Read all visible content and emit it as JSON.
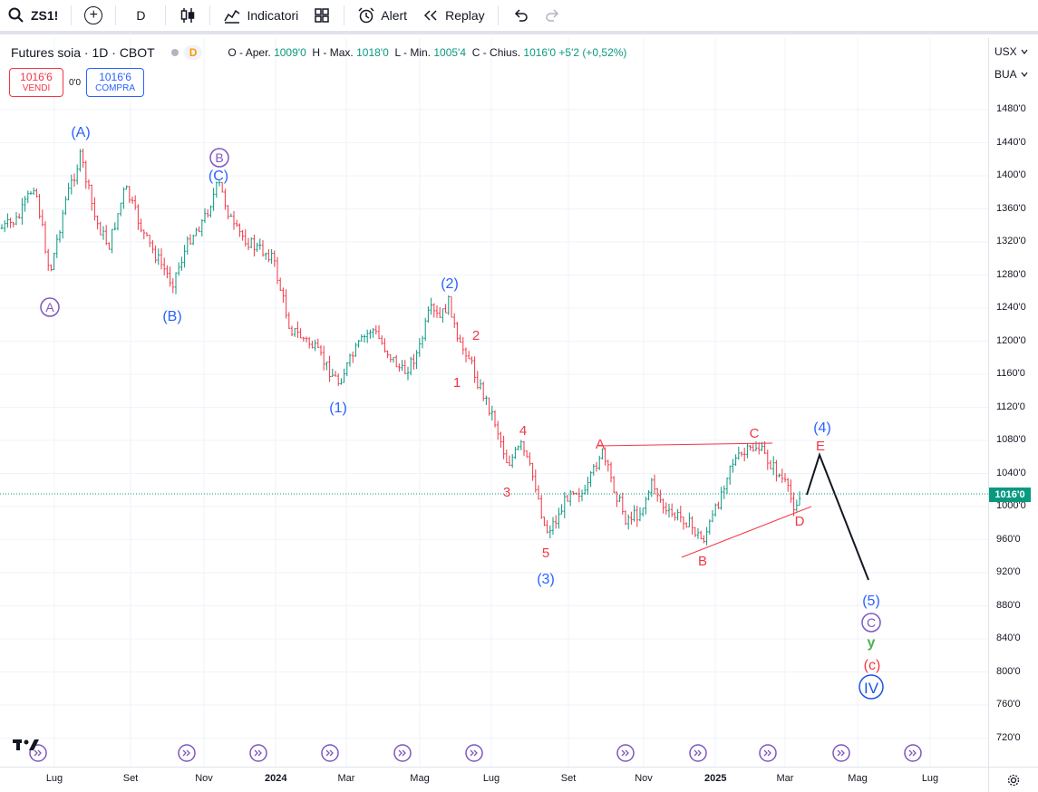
{
  "toolbar": {
    "symbol": "ZS1!",
    "interval": "D",
    "indicators_label": "Indicatori",
    "alert_label": "Alert",
    "replay_label": "Replay"
  },
  "legend": {
    "title": "Futures soia · 1D · CBOT",
    "interval_badge": "D",
    "open_label": "O - Aper.",
    "open": "1009'0",
    "high_label": "H - Max.",
    "high": "1018'0",
    "low_label": "L - Min.",
    "low": "1005'4",
    "close_label": "C - Chius.",
    "close": "1016'0",
    "change": "+5'2 (+0,52%)"
  },
  "trade": {
    "sell_price": "1016'6",
    "sell_label": "VENDI",
    "spread": "0'0",
    "buy_price": "1016'6",
    "buy_label": "COMPRA"
  },
  "price_axis": {
    "currency": "USX",
    "mode": "BUA",
    "last_price": "1016'0",
    "ticks": [
      "1480'0",
      "1440'0",
      "1400'0",
      "1360'0",
      "1320'0",
      "1280'0",
      "1240'0",
      "1200'0",
      "1160'0",
      "1120'0",
      "1080'0",
      "1040'0",
      "1000'0",
      "960'0",
      "920'0",
      "880'0",
      "840'0",
      "800'0",
      "760'0",
      "720'0"
    ]
  },
  "time_axis": {
    "labels": [
      "Lug",
      "Set",
      "Nov",
      "2024",
      "Mar",
      "Mag",
      "Lug",
      "Set",
      "Nov",
      "2025",
      "Mar",
      "Mag",
      "Lug"
    ]
  },
  "wave_labels": {
    "blue": [
      "(A)",
      "(B)",
      "(C)",
      "(1)",
      "(2)",
      "(3)",
      "(4)",
      "(5)"
    ],
    "purple": [
      "A",
      "B",
      "C"
    ],
    "red": [
      "1",
      "2",
      "3",
      "4",
      "5",
      "A",
      "B",
      "C",
      "D",
      "E",
      "(c)"
    ],
    "green": [
      "y"
    ],
    "roman": [
      "IV"
    ]
  },
  "colors": {
    "up": "#089981",
    "down": "#f23645",
    "wave_blue": "#2962ff",
    "wave_red": "#f23645",
    "wave_purple": "#7e57c2",
    "wave_green": "#4caf50",
    "wave_roman": "#1e53e5"
  }
}
